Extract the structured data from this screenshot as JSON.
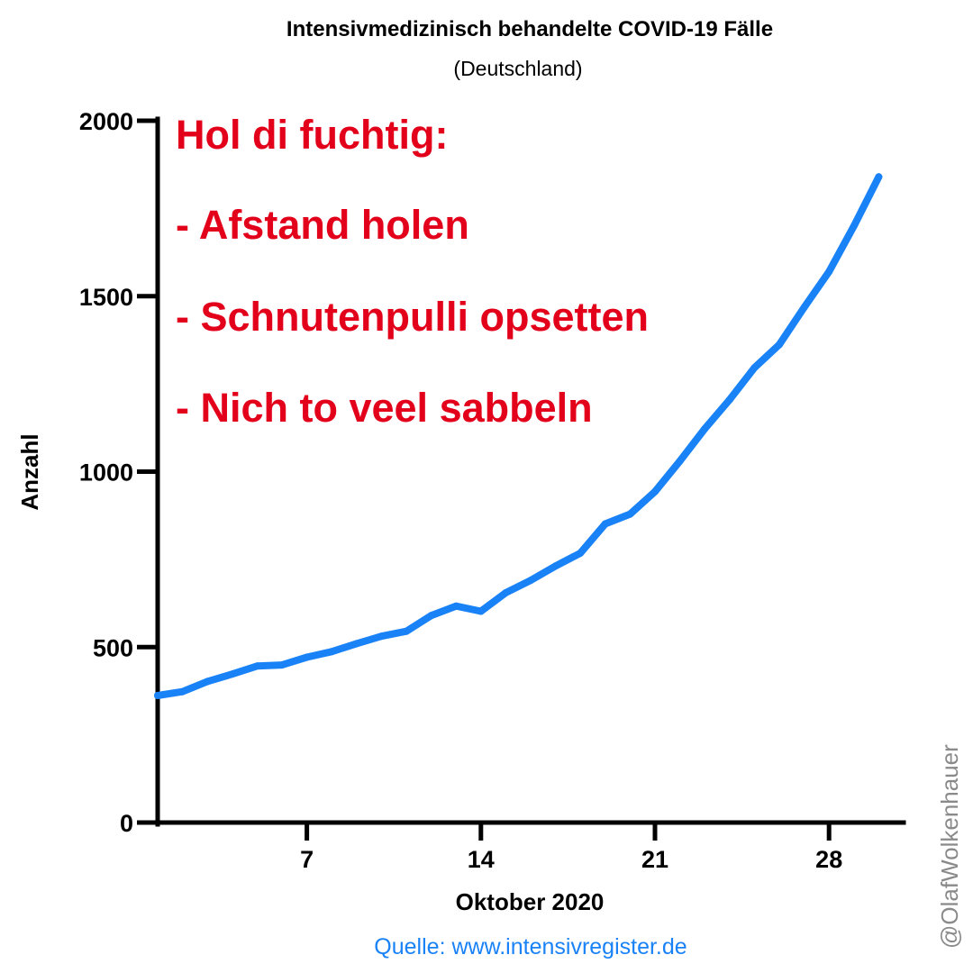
{
  "colors": {
    "line": "#1a82f7",
    "annotation": "#e3001b",
    "source": "#1a82f7",
    "credit": "#8a8a8a",
    "axis": "#000000"
  },
  "chart_data": {
    "type": "line",
    "title": "Intensivmedizinisch behandelte COVID-19 Fälle",
    "subtitle": "(Deutschland)",
    "xlabel": "Oktober 2020",
    "ylabel": "Anzahl",
    "xlim": [
      1,
      31
    ],
    "ylim": [
      0,
      2000
    ],
    "x_ticks": [
      7,
      14,
      21,
      28
    ],
    "y_ticks": [
      0,
      500,
      1000,
      1500,
      2000
    ],
    "grid": false,
    "legend": "none",
    "series": [
      {
        "x": [
          1,
          2,
          3,
          4,
          5,
          6,
          7,
          8,
          9,
          10,
          11,
          12,
          13,
          14,
          15,
          16,
          17,
          18,
          19,
          20,
          21,
          22,
          23,
          24,
          25,
          26,
          27,
          28,
          29,
          30
        ],
        "values": [
          362,
          373,
          402,
          423,
          446,
          449,
          471,
          487,
          510,
          531,
          545,
          590,
          617,
          602,
          655,
          690,
          731,
          768,
          851,
          879,
          943,
          1030,
          1122,
          1205,
          1296,
          1362,
          1468,
          1570,
          1700,
          1840
        ]
      }
    ],
    "annotations": [
      "Hol di fuchtig:",
      "- Afstand holen",
      "- Schnutenpulli opsetten",
      "- Nich to veel sabbeln"
    ]
  },
  "source": "Quelle: www.intensivregister.de",
  "credit": "@OlafWolkenhauer"
}
